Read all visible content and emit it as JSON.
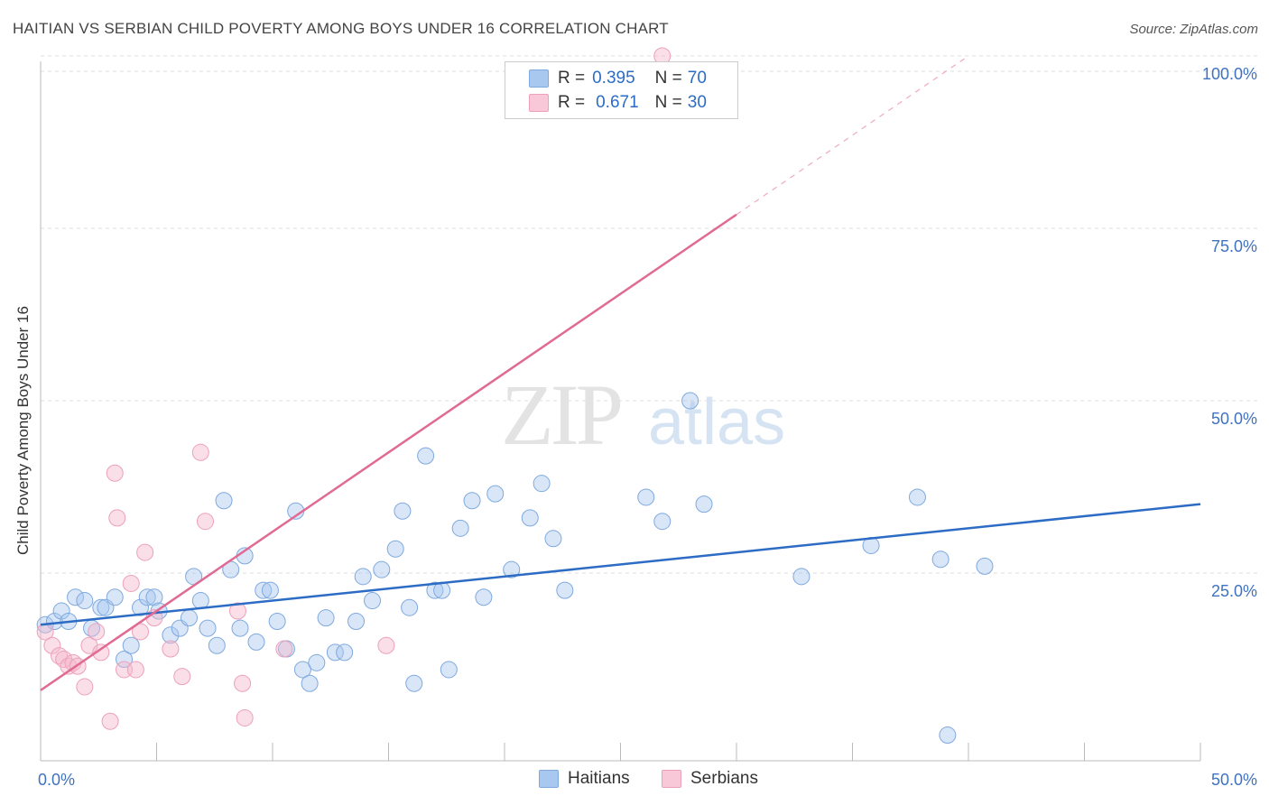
{
  "title": "HAITIAN VS SERBIAN CHILD POVERTY AMONG BOYS UNDER 16 CORRELATION CHART",
  "source": "Source: ZipAtlas.com",
  "legend_stats": [
    {
      "r_label": "R =",
      "r_value": "0.395",
      "n_label": "N =",
      "n_value": "70"
    },
    {
      "r_label": "R =",
      "r_value": "0.671",
      "n_label": "N =",
      "n_value": "30"
    }
  ],
  "colors": {
    "haitians_fill": "#a9c8f0",
    "haitians_line": "#2d6cc4",
    "serbians_fill": "#f5b8cc",
    "serbians_line": "#e06a94",
    "tick_text": "#3f72c0",
    "grid": "#dddddd"
  },
  "chart_data": {
    "type": "scatter",
    "title": "HAITIAN VS SERBIAN CHILD POVERTY AMONG BOYS UNDER 16 CORRELATION CHART",
    "xlabel": "",
    "ylabel": "Child Poverty Among Boys Under 16",
    "xlim": [
      0,
      50
    ],
    "ylim": [
      0,
      100
    ],
    "x_tick_labels": [
      "0.0%",
      "50.0%"
    ],
    "y_tick_labels": [
      "25.0%",
      "50.0%",
      "75.0%",
      "100.0%"
    ],
    "y_ticks": [
      25,
      50,
      75,
      100
    ],
    "grid": true,
    "legend_position": "top-center and bottom",
    "watermark": "ZIPatlas",
    "series": [
      {
        "name": "Haitians",
        "r": 0.395,
        "n": 70,
        "trend": {
          "x": [
            0,
            50
          ],
          "y": [
            17.5,
            35.0
          ]
        },
        "points": [
          [
            0.2,
            17.5
          ],
          [
            0.6,
            18.0
          ],
          [
            0.9,
            19.5
          ],
          [
            1.2,
            18.0
          ],
          [
            1.5,
            21.5
          ],
          [
            1.9,
            21.0
          ],
          [
            2.2,
            17.0
          ],
          [
            2.6,
            20.0
          ],
          [
            2.8,
            20.0
          ],
          [
            3.2,
            21.5
          ],
          [
            3.6,
            12.5
          ],
          [
            3.9,
            14.5
          ],
          [
            4.3,
            20.0
          ],
          [
            4.6,
            21.5
          ],
          [
            4.9,
            21.5
          ],
          [
            5.1,
            19.5
          ],
          [
            5.6,
            16.0
          ],
          [
            6.0,
            17.0
          ],
          [
            6.4,
            18.5
          ],
          [
            6.6,
            24.5
          ],
          [
            6.9,
            21.0
          ],
          [
            7.2,
            17.0
          ],
          [
            7.6,
            14.5
          ],
          [
            7.9,
            35.5
          ],
          [
            8.2,
            25.5
          ],
          [
            8.6,
            17.0
          ],
          [
            8.8,
            27.5
          ],
          [
            9.3,
            15.0
          ],
          [
            9.6,
            22.5
          ],
          [
            9.9,
            22.5
          ],
          [
            10.2,
            18.0
          ],
          [
            10.6,
            14.0
          ],
          [
            11.0,
            34.0
          ],
          [
            11.3,
            11.0
          ],
          [
            11.6,
            9.0
          ],
          [
            11.9,
            12.0
          ],
          [
            12.3,
            18.5
          ],
          [
            12.7,
            13.5
          ],
          [
            13.1,
            13.5
          ],
          [
            13.6,
            18.0
          ],
          [
            13.9,
            24.5
          ],
          [
            14.3,
            21.0
          ],
          [
            14.7,
            25.5
          ],
          [
            15.3,
            28.5
          ],
          [
            15.6,
            34.0
          ],
          [
            15.9,
            20.0
          ],
          [
            16.1,
            9.0
          ],
          [
            16.6,
            42.0
          ],
          [
            17.0,
            22.5
          ],
          [
            17.3,
            22.5
          ],
          [
            17.6,
            11.0
          ],
          [
            18.1,
            31.5
          ],
          [
            18.6,
            35.5
          ],
          [
            19.1,
            21.5
          ],
          [
            19.6,
            36.5
          ],
          [
            20.3,
            25.5
          ],
          [
            21.1,
            33.0
          ],
          [
            21.6,
            38.0
          ],
          [
            22.1,
            30.0
          ],
          [
            22.6,
            22.5
          ],
          [
            26.1,
            36.0
          ],
          [
            26.8,
            32.5
          ],
          [
            28.0,
            50.0
          ],
          [
            28.6,
            35.0
          ],
          [
            32.8,
            24.5
          ],
          [
            35.8,
            29.0
          ],
          [
            37.8,
            36.0
          ],
          [
            38.8,
            27.0
          ],
          [
            39.1,
            1.5
          ],
          [
            40.7,
            26.0
          ]
        ]
      },
      {
        "name": "Serbians",
        "r": 0.671,
        "n": 30,
        "trend": {
          "x": [
            0,
            30
          ],
          "y": [
            8.0,
            77.0
          ]
        },
        "trend_dashed": {
          "x": [
            30,
            40
          ],
          "y": [
            77.0,
            100.0
          ]
        },
        "points": [
          [
            0.2,
            16.5
          ],
          [
            0.5,
            14.5
          ],
          [
            0.8,
            13.0
          ],
          [
            1.0,
            12.5
          ],
          [
            1.2,
            11.5
          ],
          [
            1.4,
            12.0
          ],
          [
            1.6,
            11.5
          ],
          [
            1.9,
            8.5
          ],
          [
            2.1,
            14.5
          ],
          [
            2.4,
            16.5
          ],
          [
            2.6,
            13.5
          ],
          [
            3.0,
            3.5
          ],
          [
            3.2,
            39.5
          ],
          [
            3.3,
            33.0
          ],
          [
            3.6,
            11.0
          ],
          [
            3.9,
            23.5
          ],
          [
            4.1,
            11.0
          ],
          [
            4.3,
            16.5
          ],
          [
            4.5,
            28.0
          ],
          [
            4.9,
            18.5
          ],
          [
            5.6,
            14.0
          ],
          [
            6.1,
            10.0
          ],
          [
            6.9,
            42.5
          ],
          [
            7.1,
            32.5
          ],
          [
            8.5,
            19.5
          ],
          [
            8.7,
            9.0
          ],
          [
            8.8,
            4.0
          ],
          [
            10.5,
            14.0
          ],
          [
            14.9,
            14.5
          ],
          [
            26.8,
            100.0
          ]
        ]
      }
    ]
  }
}
